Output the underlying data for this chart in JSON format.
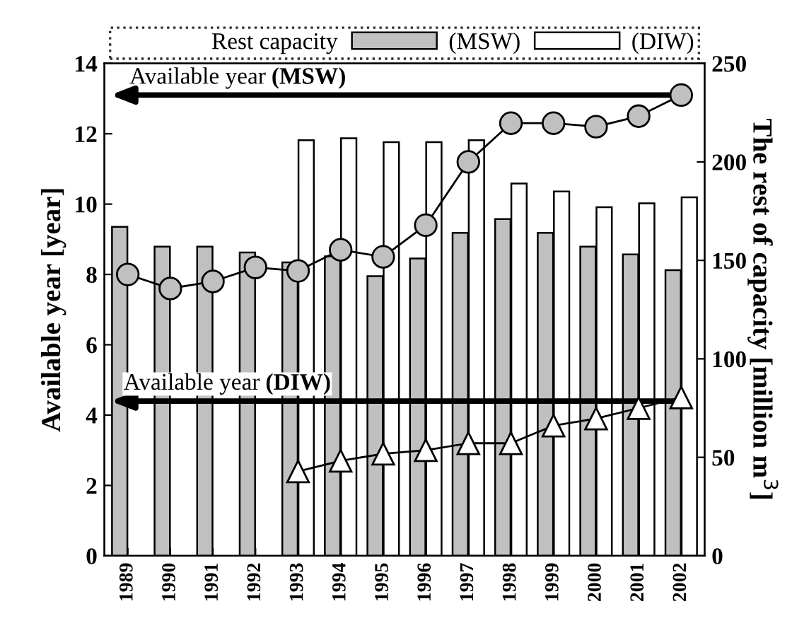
{
  "chart_data": {
    "type": "bar",
    "categories": [
      "1989",
      "1990",
      "1991",
      "1992",
      "1993",
      "1994",
      "1995",
      "1996",
      "1997",
      "1998",
      "1999",
      "2000",
      "2001",
      "2002"
    ],
    "series": [
      {
        "name": "(MSW)",
        "axis": "y2",
        "color": "#c0c0c0",
        "values": [
          167,
          157,
          157,
          154,
          149,
          152,
          142,
          151,
          164,
          171,
          164,
          157,
          153,
          145
        ]
      },
      {
        "name": "(DIW)",
        "axis": "y2",
        "color": "#ffffff",
        "values": [
          null,
          null,
          null,
          null,
          211,
          212,
          210,
          210,
          211,
          189,
          185,
          177,
          179,
          182
        ]
      },
      {
        "type": "line",
        "axis": "y",
        "color": "#c0c0c0",
        "marker": "circle",
        "values": [
          8.0,
          7.6,
          7.8,
          8.2,
          8.1,
          8.7,
          8.5,
          9.4,
          11.2,
          12.3,
          12.3,
          12.2,
          12.5,
          13.1
        ]
      },
      {
        "type": "line",
        "axis": "y",
        "color": "#ffffff",
        "marker": "triangle",
        "values": [
          null,
          null,
          null,
          null,
          2.4,
          2.7,
          2.9,
          3.0,
          3.2,
          3.2,
          3.7,
          3.9,
          4.2,
          4.5
        ]
      }
    ],
    "ylabel": "Available year [year]",
    "y2label": "The rest of capacity [million m$^{3}$]",
    "legend_title": "Rest capacity",
    "legend": "top",
    "ylim": [
      0,
      14
    ],
    "yticks": [
      0,
      2,
      4,
      6,
      8,
      10,
      12,
      14
    ],
    "y2lim": [
      0,
      250
    ],
    "y2ticks": [
      0,
      50,
      100,
      150,
      200,
      250
    ],
    "grid": false,
    "annotations": [
      {
        "text": "Available year (MSW)",
        "x": "2002",
        "y": 13.1
      },
      {
        "text": "Available year (DIW)",
        "x": "2002",
        "y": 4.4
      }
    ]
  }
}
